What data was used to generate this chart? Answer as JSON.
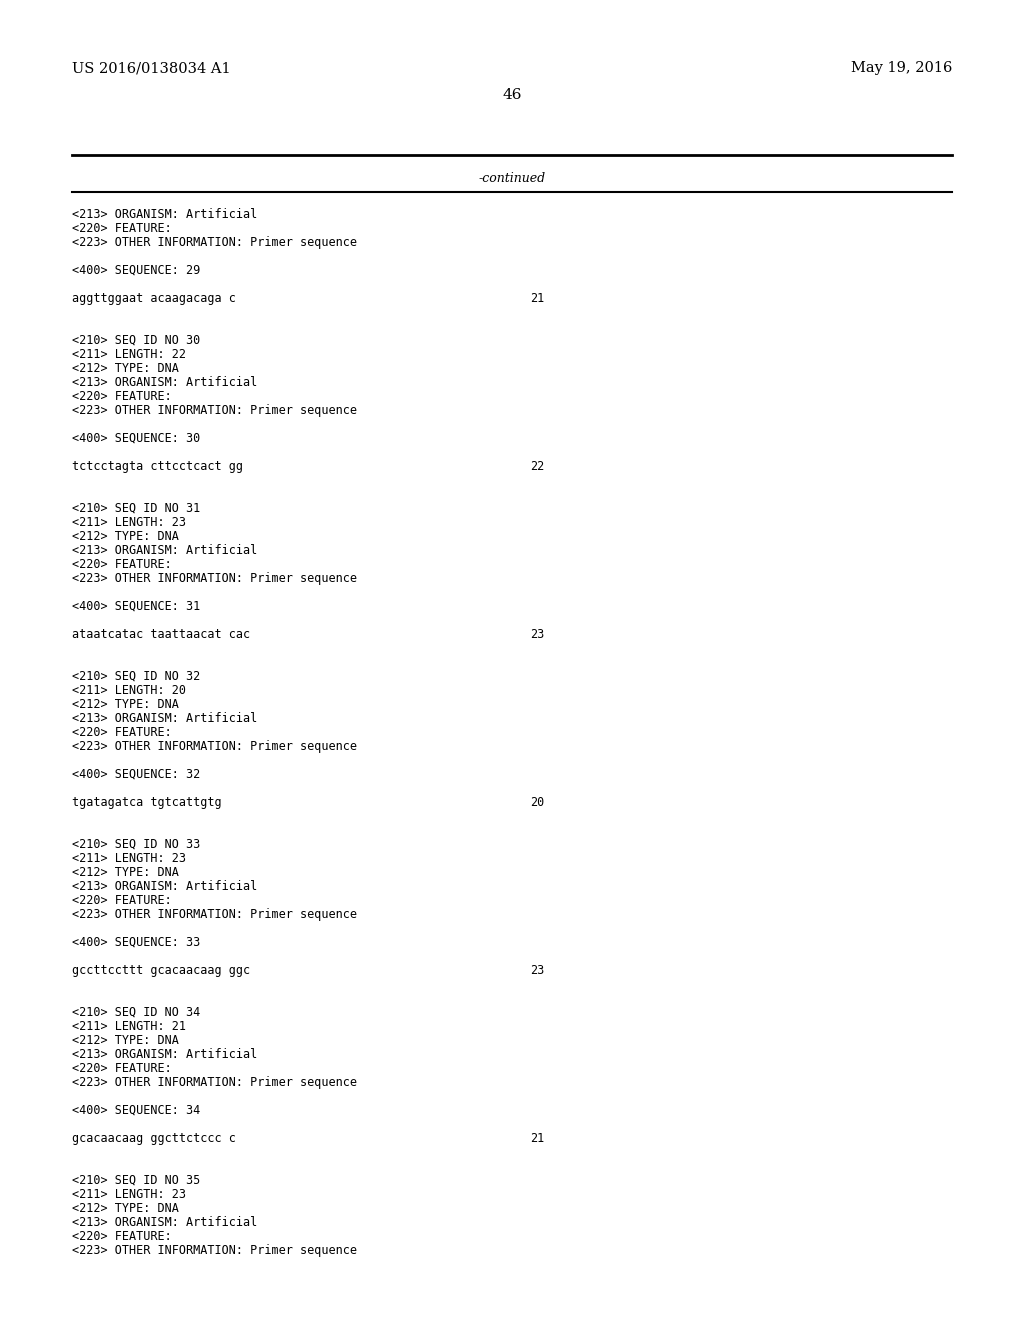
{
  "bg_color": "#ffffff",
  "header_left": "US 2016/0138034 A1",
  "header_right": "May 19, 2016",
  "page_number": "46",
  "continued_text": "-continued",
  "header_font_size": 10.5,
  "page_font_size": 11,
  "continued_font_size": 9,
  "body_font_size": 8.5,
  "content_blocks": [
    {
      "lines": [
        "<213> ORGANISM: Artificial",
        "<220> FEATURE:",
        "<223> OTHER INFORMATION: Primer sequence"
      ],
      "blank_after": 1
    },
    {
      "lines": [
        "<400> SEQUENCE: 29"
      ],
      "blank_after": 1
    },
    {
      "seq_line": "aggttggaat acaagacaga c",
      "seq_num": "21",
      "blank_after": 2
    },
    {
      "lines": [
        "<210> SEQ ID NO 30",
        "<211> LENGTH: 22",
        "<212> TYPE: DNA",
        "<213> ORGANISM: Artificial",
        "<220> FEATURE:",
        "<223> OTHER INFORMATION: Primer sequence"
      ],
      "blank_after": 1
    },
    {
      "lines": [
        "<400> SEQUENCE: 30"
      ],
      "blank_after": 1
    },
    {
      "seq_line": "tctcctagta cttcctcact gg",
      "seq_num": "22",
      "blank_after": 2
    },
    {
      "lines": [
        "<210> SEQ ID NO 31",
        "<211> LENGTH: 23",
        "<212> TYPE: DNA",
        "<213> ORGANISM: Artificial",
        "<220> FEATURE:",
        "<223> OTHER INFORMATION: Primer sequence"
      ],
      "blank_after": 1
    },
    {
      "lines": [
        "<400> SEQUENCE: 31"
      ],
      "blank_after": 1
    },
    {
      "seq_line": "ataatcatac taattaacat cac",
      "seq_num": "23",
      "blank_after": 2
    },
    {
      "lines": [
        "<210> SEQ ID NO 32",
        "<211> LENGTH: 20",
        "<212> TYPE: DNA",
        "<213> ORGANISM: Artificial",
        "<220> FEATURE:",
        "<223> OTHER INFORMATION: Primer sequence"
      ],
      "blank_after": 1
    },
    {
      "lines": [
        "<400> SEQUENCE: 32"
      ],
      "blank_after": 1
    },
    {
      "seq_line": "tgatagatca tgtcattgtg",
      "seq_num": "20",
      "blank_after": 2
    },
    {
      "lines": [
        "<210> SEQ ID NO 33",
        "<211> LENGTH: 23",
        "<212> TYPE: DNA",
        "<213> ORGANISM: Artificial",
        "<220> FEATURE:",
        "<223> OTHER INFORMATION: Primer sequence"
      ],
      "blank_after": 1
    },
    {
      "lines": [
        "<400> SEQUENCE: 33"
      ],
      "blank_after": 1
    },
    {
      "seq_line": "gccttccttt gcacaacaag ggc",
      "seq_num": "23",
      "blank_after": 2
    },
    {
      "lines": [
        "<210> SEQ ID NO 34",
        "<211> LENGTH: 21",
        "<212> TYPE: DNA",
        "<213> ORGANISM: Artificial",
        "<220> FEATURE:",
        "<223> OTHER INFORMATION: Primer sequence"
      ],
      "blank_after": 1
    },
    {
      "lines": [
        "<400> SEQUENCE: 34"
      ],
      "blank_after": 1
    },
    {
      "seq_line": "gcacaacaag ggcttctccc c",
      "seq_num": "21",
      "blank_after": 2
    },
    {
      "lines": [
        "<210> SEQ ID NO 35",
        "<211> LENGTH: 23",
        "<212> TYPE: DNA",
        "<213> ORGANISM: Artificial",
        "<220> FEATURE:",
        "<223> OTHER INFORMATION: Primer sequence"
      ],
      "blank_after": 0
    }
  ]
}
